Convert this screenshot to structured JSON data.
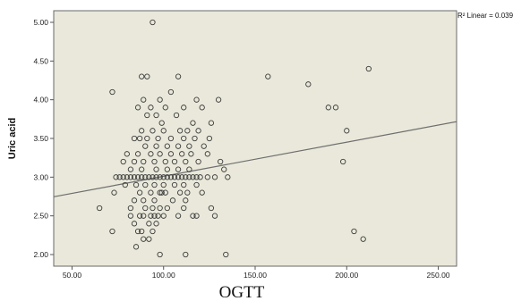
{
  "chart_data": {
    "type": "scatter",
    "xlabel": "OGTT",
    "ylabel": "Uric acid",
    "xlim": [
      40,
      260
    ],
    "ylim": [
      1.85,
      5.15
    ],
    "x_ticks": [
      "50.00",
      "100.00",
      "150.00",
      "200.00",
      "250.00"
    ],
    "x_tick_values": [
      50,
      100,
      150,
      200,
      250
    ],
    "y_ticks": [
      "2.00",
      "2.50",
      "3.00",
      "3.50",
      "4.00",
      "4.50",
      "5.00"
    ],
    "y_tick_values": [
      2.0,
      2.5,
      3.0,
      3.5,
      4.0,
      4.5,
      5.0
    ],
    "fit_line": {
      "label": "R² Linear = 0.039",
      "intercept": 2.57,
      "slope": 0.00441
    },
    "grid": false,
    "colors": {
      "plot_background": "#e9e8da",
      "marker": "#3c3c3c",
      "fit_line": "#6e6e6e"
    },
    "points": [
      [
        94,
        5.0
      ],
      [
        88,
        4.3
      ],
      [
        91,
        4.3
      ],
      [
        108,
        4.3
      ],
      [
        157,
        4.3
      ],
      [
        212,
        4.4
      ],
      [
        179,
        4.2
      ],
      [
        72,
        4.1
      ],
      [
        104,
        4.1
      ],
      [
        89,
        4.0
      ],
      [
        98,
        4.0
      ],
      [
        118,
        4.0
      ],
      [
        130,
        4.0
      ],
      [
        86,
        3.9
      ],
      [
        93,
        3.9
      ],
      [
        101,
        3.9
      ],
      [
        111,
        3.9
      ],
      [
        121,
        3.9
      ],
      [
        190,
        3.9
      ],
      [
        194,
        3.9
      ],
      [
        91,
        3.8
      ],
      [
        96,
        3.8
      ],
      [
        107,
        3.8
      ],
      [
        99,
        3.7
      ],
      [
        116,
        3.7
      ],
      [
        126,
        3.7
      ],
      [
        88,
        3.6
      ],
      [
        94,
        3.6
      ],
      [
        100,
        3.6
      ],
      [
        109,
        3.6
      ],
      [
        113,
        3.6
      ],
      [
        119,
        3.6
      ],
      [
        200,
        3.6
      ],
      [
        84,
        3.5
      ],
      [
        87,
        3.5
      ],
      [
        91,
        3.5
      ],
      [
        97,
        3.5
      ],
      [
        104,
        3.5
      ],
      [
        111,
        3.5
      ],
      [
        117,
        3.5
      ],
      [
        125,
        3.5
      ],
      [
        90,
        3.4
      ],
      [
        96,
        3.4
      ],
      [
        102,
        3.4
      ],
      [
        108,
        3.4
      ],
      [
        114,
        3.4
      ],
      [
        122,
        3.4
      ],
      [
        80,
        3.3
      ],
      [
        86,
        3.3
      ],
      [
        93,
        3.3
      ],
      [
        98,
        3.3
      ],
      [
        104,
        3.3
      ],
      [
        110,
        3.3
      ],
      [
        115,
        3.3
      ],
      [
        124,
        3.3
      ],
      [
        78,
        3.2
      ],
      [
        84,
        3.2
      ],
      [
        89,
        3.2
      ],
      [
        95,
        3.2
      ],
      [
        101,
        3.2
      ],
      [
        106,
        3.2
      ],
      [
        112,
        3.2
      ],
      [
        119,
        3.2
      ],
      [
        131,
        3.2
      ],
      [
        198,
        3.2
      ],
      [
        82,
        3.1
      ],
      [
        88,
        3.1
      ],
      [
        96,
        3.1
      ],
      [
        102,
        3.1
      ],
      [
        108,
        3.1
      ],
      [
        114,
        3.1
      ],
      [
        133,
        3.1
      ],
      [
        74,
        3.0
      ],
      [
        76,
        3.0
      ],
      [
        78,
        3.0
      ],
      [
        80,
        3.0
      ],
      [
        82,
        3.0
      ],
      [
        84,
        3.0
      ],
      [
        86,
        3.0
      ],
      [
        88,
        3.0
      ],
      [
        90,
        3.0
      ],
      [
        92,
        3.0
      ],
      [
        94,
        3.0
      ],
      [
        96,
        3.0
      ],
      [
        98,
        3.0
      ],
      [
        100,
        3.0
      ],
      [
        102,
        3.0
      ],
      [
        104,
        3.0
      ],
      [
        106,
        3.0
      ],
      [
        108,
        3.0
      ],
      [
        110,
        3.0
      ],
      [
        112,
        3.0
      ],
      [
        114,
        3.0
      ],
      [
        116,
        3.0
      ],
      [
        118,
        3.0
      ],
      [
        120,
        3.0
      ],
      [
        124,
        3.0
      ],
      [
        128,
        3.0
      ],
      [
        135,
        3.0
      ],
      [
        79,
        2.9
      ],
      [
        85,
        2.9
      ],
      [
        90,
        2.9
      ],
      [
        95,
        2.9
      ],
      [
        100,
        2.9
      ],
      [
        106,
        2.9
      ],
      [
        111,
        2.9
      ],
      [
        118,
        2.9
      ],
      [
        73,
        2.8
      ],
      [
        87,
        2.8
      ],
      [
        93,
        2.8
      ],
      [
        98,
        2.8
      ],
      [
        99,
        2.8
      ],
      [
        101,
        2.8
      ],
      [
        109,
        2.8
      ],
      [
        113,
        2.8
      ],
      [
        121,
        2.8
      ],
      [
        84,
        2.7
      ],
      [
        89,
        2.7
      ],
      [
        95,
        2.7
      ],
      [
        105,
        2.7
      ],
      [
        112,
        2.7
      ],
      [
        65,
        2.6
      ],
      [
        82,
        2.6
      ],
      [
        90,
        2.6
      ],
      [
        94,
        2.6
      ],
      [
        98,
        2.6
      ],
      [
        102,
        2.6
      ],
      [
        111,
        2.6
      ],
      [
        126,
        2.6
      ],
      [
        82,
        2.5
      ],
      [
        87,
        2.5
      ],
      [
        89,
        2.5
      ],
      [
        93,
        2.5
      ],
      [
        95,
        2.5
      ],
      [
        97,
        2.5
      ],
      [
        100,
        2.5
      ],
      [
        108,
        2.5
      ],
      [
        116,
        2.5
      ],
      [
        118,
        2.5
      ],
      [
        128,
        2.5
      ],
      [
        84,
        2.4
      ],
      [
        92,
        2.4
      ],
      [
        96,
        2.4
      ],
      [
        72,
        2.3
      ],
      [
        86,
        2.3
      ],
      [
        88,
        2.3
      ],
      [
        94,
        2.3
      ],
      [
        204,
        2.3
      ],
      [
        89,
        2.2
      ],
      [
        92,
        2.2
      ],
      [
        209,
        2.2
      ],
      [
        85,
        2.1
      ],
      [
        98,
        2.0
      ],
      [
        112,
        2.0
      ],
      [
        134,
        2.0
      ]
    ]
  }
}
